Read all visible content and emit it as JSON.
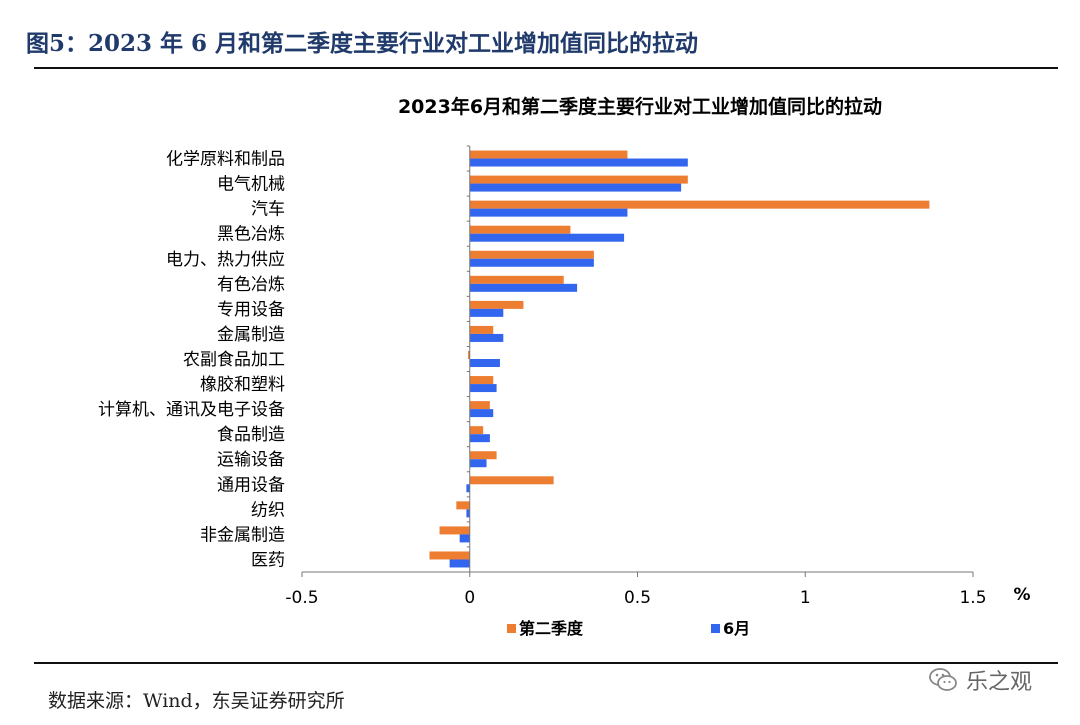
{
  "header": {
    "figure_title": "图5：2023 年 6 月和第二季度主要行业对工业增加值同比的拉动"
  },
  "footer": {
    "source": "数据来源：Wind，东吴证券研究所",
    "watermark": "乐之观"
  },
  "colors": {
    "q2": "#ED7D31",
    "june": "#3366EE",
    "header": "#1f3a6b"
  },
  "icons": {
    "watermark": "wechat-icon"
  },
  "chart_data": {
    "type": "bar",
    "orientation": "horizontal",
    "title": "2023年6月和第二季度主要行业对工业增加值同比的拉动",
    "unit_label": "%",
    "categories": [
      "化学原料和制品",
      "电气机械",
      "汽车",
      "黑色冶炼",
      "电力、热力供应",
      "有色冶炼",
      "专用设备",
      "金属制造",
      "农副食品加工",
      "橡胶和塑料",
      "计算机、通讯及电子设备",
      "食品制造",
      "运输设备",
      "通用设备",
      "纺织",
      "非金属制造",
      "医药"
    ],
    "series": [
      {
        "name": "第二季度",
        "color": "#ED7D31",
        "values": [
          0.47,
          0.65,
          1.37,
          0.3,
          0.37,
          0.28,
          0.16,
          0.07,
          -0.005,
          0.07,
          0.06,
          0.04,
          0.08,
          0.25,
          -0.04,
          -0.09,
          -0.12
        ]
      },
      {
        "name": "6月",
        "color": "#3366EE",
        "values": [
          0.65,
          0.63,
          0.47,
          0.46,
          0.37,
          0.32,
          0.1,
          0.1,
          0.09,
          0.08,
          0.07,
          0.06,
          0.05,
          -0.01,
          -0.01,
          -0.03,
          -0.06
        ]
      }
    ],
    "xlim": [
      -0.5,
      1.5
    ],
    "xticks": [
      "-0.5",
      "0",
      "0.5",
      "1",
      "1.5"
    ],
    "grid": false,
    "legend": "bottom"
  }
}
